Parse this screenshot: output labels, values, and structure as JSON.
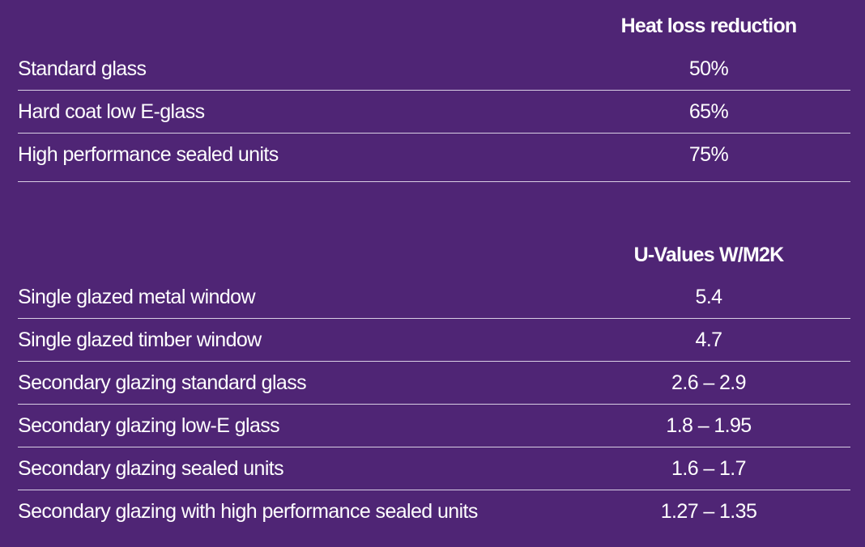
{
  "tables": [
    {
      "header": "Heat loss reduction",
      "rows": [
        [
          "Standard glass",
          "50%"
        ],
        [
          "Hard coat low E-glass",
          "65%"
        ],
        [
          "High performance sealed units",
          "75%"
        ]
      ]
    },
    {
      "header": "U-Values W/M2K",
      "rows": [
        [
          "Single glazed metal window",
          "5.4"
        ],
        [
          "Single glazed timber window",
          "4.7"
        ],
        [
          "Secondary glazing standard glass",
          "2.6 – 2.9"
        ],
        [
          "Secondary glazing low-E glass",
          "1.8 – 1.95"
        ],
        [
          "Secondary glazing sealed units",
          "1.6 – 1.7"
        ],
        [
          "Secondary glazing with high performance sealed units",
          "1.27 – 1.35"
        ]
      ]
    }
  ]
}
